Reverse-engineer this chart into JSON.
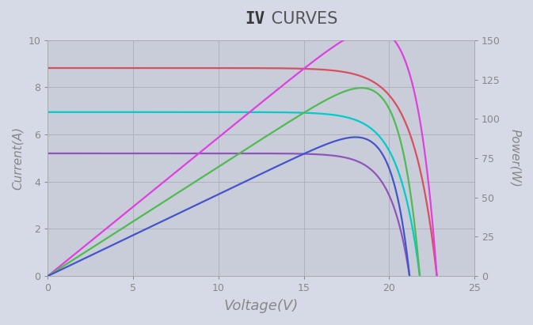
{
  "title_bold": "IV",
  "title_regular": " CURVES",
  "xlabel": "Voltage(V)",
  "ylabel_left": "Current(A)",
  "ylabel_right": "Power(W)",
  "xlim": [
    0,
    25
  ],
  "ylim_left": [
    0,
    10.0
  ],
  "ylim_right": [
    0,
    150
  ],
  "xticks": [
    0,
    5,
    10,
    15,
    20,
    25
  ],
  "yticks_left": [
    0,
    2.0,
    4.0,
    6.0,
    8.0,
    10.0
  ],
  "yticks_right": [
    0,
    25,
    50,
    75,
    100,
    125,
    150
  ],
  "background_color": "#d6dae6",
  "plot_bg_color": "#c8cdd9",
  "grid_color": "#adb2be",
  "text_color": "#888888",
  "iv_curves": [
    {
      "color": "#d85060",
      "Isc": 8.82,
      "Voc": 22.8,
      "Imp": 8.62,
      "Vmp": 17.6
    },
    {
      "color": "#00cccc",
      "Isc": 6.95,
      "Voc": 21.8,
      "Imp": 6.78,
      "Vmp": 17.2
    },
    {
      "color": "#9055bb",
      "Isc": 5.2,
      "Voc": 21.2,
      "Imp": 5.08,
      "Vmp": 17.0
    }
  ],
  "power_curves": [
    {
      "color": "#e040e0",
      "Isc": 8.82,
      "Voc": 22.8,
      "Imp": 8.62,
      "Vmp": 17.6
    },
    {
      "color": "#50bb50",
      "Isc": 6.95,
      "Voc": 21.8,
      "Imp": 6.78,
      "Vmp": 17.2
    },
    {
      "color": "#4455cc",
      "Isc": 5.2,
      "Voc": 21.2,
      "Imp": 5.08,
      "Vmp": 17.0
    }
  ]
}
